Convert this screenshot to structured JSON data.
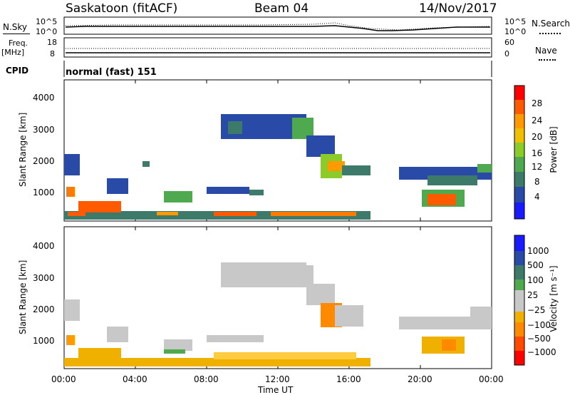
{
  "header": {
    "site": "Saskatoon (fitACF)",
    "beam": "Beam 04",
    "date": "14/Nov/2017"
  },
  "top_panels": {
    "nsky_label": "N.Sky",
    "nsearch_label": "N.Search",
    "nsky_ticks": [
      "10^5",
      "10^0"
    ],
    "nsearch_ticks": [
      "10^5",
      "10^0"
    ],
    "freq_label_1": "Freq.",
    "freq_label_2": "[MHz]",
    "freq_ticks": [
      "18",
      "8"
    ],
    "nave_label": "Nave",
    "nave_ticks": [
      "60",
      "0"
    ],
    "cpid_label": "CPID",
    "cpid_value": "normal (fast) 151"
  },
  "colors": {
    "power": [
      "#1a1aff",
      "#2a4aa8",
      "#3e7a6a",
      "#4faa4f",
      "#8ccc2a",
      "#f0c000",
      "#ff9a00",
      "#ff5a00",
      "#ff0000"
    ],
    "velocity": [
      "#1a1aff",
      "#2a4aa8",
      "#3e7a6a",
      "#4faa4f",
      "#c8c8c8",
      "#f0b000",
      "#ff8a00",
      "#ff4a00",
      "#ff0000"
    ]
  },
  "chart_data": [
    {
      "type": "heatmap",
      "panel": "power",
      "ylabel": "Slant Range [km]",
      "yticks": [
        "1000",
        "2000",
        "3000",
        "4000"
      ],
      "ylim": [
        200,
        4500
      ],
      "colorbar_label": "Power [dB]",
      "colorbar_ticks": [
        "4",
        "8",
        "12",
        "16",
        "20",
        "24",
        "28"
      ],
      "clim": [
        0,
        30
      ]
    },
    {
      "type": "heatmap",
      "panel": "velocity",
      "ylabel": "Slant Range [km]",
      "yticks": [
        "1000",
        "2000",
        "3000",
        "4000"
      ],
      "ylim": [
        200,
        4500
      ],
      "colorbar_label": "Velocity [m s⁻¹]",
      "colorbar_ticks": [
        "1000",
        "500",
        "100",
        "25",
        "−25",
        "−100",
        "−500",
        "−1000"
      ]
    }
  ],
  "x_axis": {
    "ticks": [
      "00:00",
      "04:00",
      "08:00",
      "12:00",
      "16:00",
      "20:00",
      "00:00"
    ],
    "label": "Time UT"
  }
}
